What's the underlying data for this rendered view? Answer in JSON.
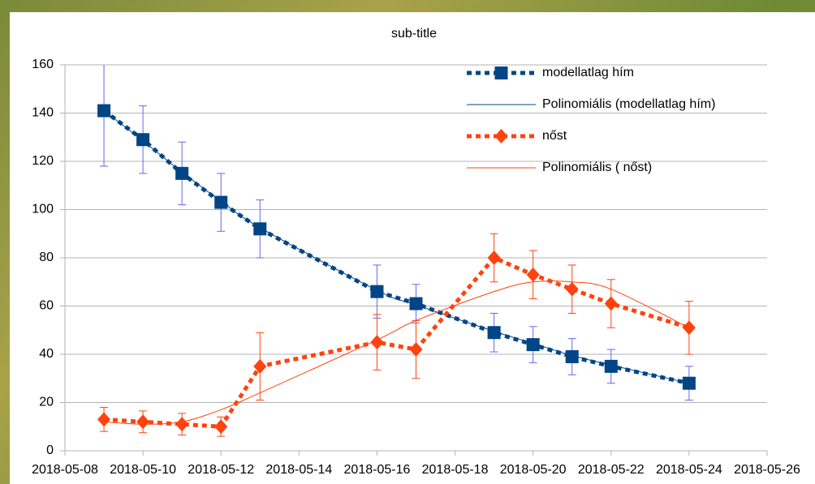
{
  "chart_data": {
    "type": "line",
    "title": "sub-title",
    "x": [
      "2018-05-09",
      "2018-05-10",
      "2018-05-11",
      "2018-05-12",
      "2018-05-13",
      "2018-05-16",
      "2018-05-17",
      "2018-05-19",
      "2018-05-20",
      "2018-05-21",
      "2018-05-22",
      "2018-05-24"
    ],
    "xlim": [
      "2018-05-08",
      "2018-05-26"
    ],
    "xticks": [
      "2018-05-08",
      "2018-05-10",
      "2018-05-12",
      "2018-05-14",
      "2018-05-16",
      "2018-05-18",
      "2018-05-20",
      "2018-05-22",
      "2018-05-24",
      "2018-05-26"
    ],
    "ylim": [
      0,
      160
    ],
    "yticks": [
      0,
      20,
      40,
      60,
      80,
      100,
      120,
      140,
      160
    ],
    "grid": true,
    "legend": "top-right",
    "series": [
      {
        "name": "modellatlag hím",
        "color": "#004586",
        "style": "marked",
        "marker": "square",
        "error_color": "#6666ee",
        "values": [
          141,
          129,
          115,
          103,
          92,
          66,
          61,
          49,
          44,
          39,
          35,
          28
        ],
        "errors": [
          23,
          14,
          13,
          12,
          12,
          11,
          8,
          8,
          7.5,
          7.5,
          7,
          7
        ]
      },
      {
        "name": "Polinomiális (modellatlag hím)",
        "color": "#004586",
        "style": "trend",
        "values": [
          141,
          128.5,
          115.5,
          103.5,
          92.5,
          66.5,
          60.5,
          49.5,
          44.5,
          39.5,
          35.5,
          28
        ]
      },
      {
        "name": "nőst",
        "color": "#ff420e",
        "style": "marked",
        "marker": "diamond",
        "error_color": "#ff420e",
        "values": [
          13,
          12,
          11,
          10,
          35,
          45,
          42,
          80,
          73,
          67,
          61,
          51
        ],
        "errors": [
          5,
          4.5,
          4.5,
          4,
          14,
          11.5,
          12,
          10,
          10,
          10,
          10,
          11
        ]
      },
      {
        "name": "Polinomiális ( nőst)",
        "color": "#ff420e",
        "style": "trend",
        "values": [
          12,
          11,
          12,
          17,
          24,
          46,
          54,
          66,
          70,
          70,
          67,
          51
        ]
      }
    ]
  }
}
